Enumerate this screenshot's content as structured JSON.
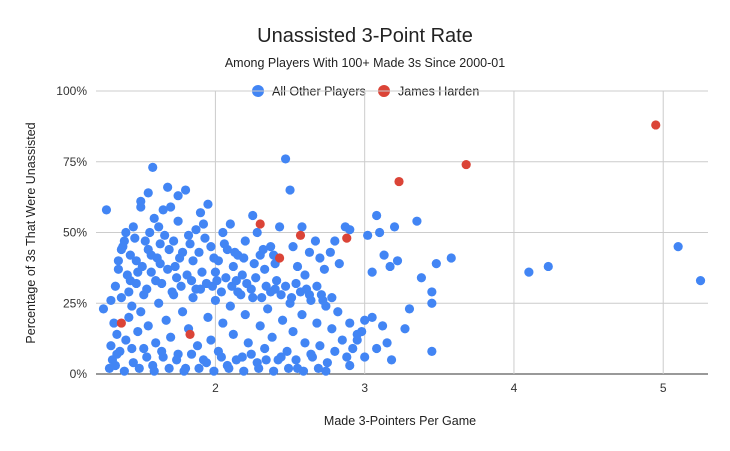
{
  "chart_data": {
    "type": "scatter",
    "title": "Unassisted 3-Point Rate",
    "subtitle": "Among Players With 100+ Made 3s Since 2000-01",
    "xlabel": "Made 3-Pointers Per Game",
    "ylabel": "Percentage of 3s That Were Unassisted",
    "xlim": [
      1.2,
      5.3
    ],
    "ylim": [
      0,
      100
    ],
    "x_ticks": [
      2,
      3,
      4,
      5
    ],
    "x_tick_labels": [
      "2",
      "3",
      "4",
      "5"
    ],
    "y_ticks": [
      0,
      25,
      50,
      75,
      100
    ],
    "y_tick_labels": [
      "0%",
      "25%",
      "50%",
      "75%",
      "100%"
    ],
    "grid": true,
    "legend_position": "top-center",
    "series": [
      {
        "name": "All Other Players",
        "color": "#4285f4",
        "points": [
          [
            1.25,
            23
          ],
          [
            1.27,
            58
          ],
          [
            1.3,
            26
          ],
          [
            1.31,
            5
          ],
          [
            1.33,
            3
          ],
          [
            1.34,
            14
          ],
          [
            1.35,
            37
          ],
          [
            1.37,
            44
          ],
          [
            1.38,
            45
          ],
          [
            1.4,
            50
          ],
          [
            1.42,
            29
          ],
          [
            1.43,
            33
          ],
          [
            1.45,
            52
          ],
          [
            1.47,
            40
          ],
          [
            1.48,
            36
          ],
          [
            1.5,
            59
          ],
          [
            1.5,
            61
          ],
          [
            1.52,
            28
          ],
          [
            1.55,
            44
          ],
          [
            1.55,
            64
          ],
          [
            1.57,
            42
          ],
          [
            1.58,
            73
          ],
          [
            1.6,
            33
          ],
          [
            1.62,
            52
          ],
          [
            1.63,
            46
          ],
          [
            1.65,
            58
          ],
          [
            1.66,
            49
          ],
          [
            1.68,
            66
          ],
          [
            1.7,
            59
          ],
          [
            1.72,
            47
          ],
          [
            1.73,
            38
          ],
          [
            1.75,
            63
          ],
          [
            1.75,
            54
          ],
          [
            1.78,
            43
          ],
          [
            1.8,
            65
          ],
          [
            1.82,
            49
          ],
          [
            1.85,
            40
          ],
          [
            1.87,
            51
          ],
          [
            1.9,
            57
          ],
          [
            1.92,
            53
          ],
          [
            1.95,
            60
          ],
          [
            1.97,
            45
          ],
          [
            2.0,
            36
          ],
          [
            2.02,
            40
          ],
          [
            2.05,
            50
          ],
          [
            2.08,
            44
          ],
          [
            2.1,
            53
          ],
          [
            2.12,
            38
          ],
          [
            2.15,
            42
          ],
          [
            2.18,
            35
          ],
          [
            2.2,
            47
          ],
          [
            2.25,
            56
          ],
          [
            2.28,
            50
          ],
          [
            2.3,
            42
          ],
          [
            2.33,
            37
          ],
          [
            2.37,
            45
          ],
          [
            2.4,
            39
          ],
          [
            2.43,
            52
          ],
          [
            2.47,
            76
          ],
          [
            2.5,
            65
          ],
          [
            2.52,
            45
          ],
          [
            2.55,
            38
          ],
          [
            2.58,
            52
          ],
          [
            2.6,
            35
          ],
          [
            2.63,
            43
          ],
          [
            2.67,
            47
          ],
          [
            2.7,
            41
          ],
          [
            2.73,
            37
          ],
          [
            2.77,
            43
          ],
          [
            2.8,
            47
          ],
          [
            2.83,
            39
          ],
          [
            2.87,
            52
          ],
          [
            2.9,
            51
          ],
          [
            3.0,
            19
          ],
          [
            3.02,
            49
          ],
          [
            3.05,
            36
          ],
          [
            3.08,
            56
          ],
          [
            3.1,
            50
          ],
          [
            3.13,
            42
          ],
          [
            3.17,
            38
          ],
          [
            3.2,
            52
          ],
          [
            3.22,
            40
          ],
          [
            3.27,
            16
          ],
          [
            3.3,
            23
          ],
          [
            3.35,
            54
          ],
          [
            3.38,
            34
          ],
          [
            3.45,
            29
          ],
          [
            3.48,
            39
          ],
          [
            3.58,
            41
          ],
          [
            3.45,
            25
          ],
          [
            3.45,
            8
          ],
          [
            3.15,
            11
          ],
          [
            3.05,
            20
          ],
          [
            2.95,
            12
          ],
          [
            2.98,
            15
          ],
          [
            3.08,
            9
          ],
          [
            3.12,
            17
          ],
          [
            3.18,
            5
          ],
          [
            2.9,
            3
          ],
          [
            3.0,
            6
          ],
          [
            4.1,
            36
          ],
          [
            4.23,
            38
          ],
          [
            5.1,
            45
          ],
          [
            5.25,
            33
          ],
          [
            1.3,
            10
          ],
          [
            1.32,
            18
          ],
          [
            1.36,
            8
          ],
          [
            1.4,
            12
          ],
          [
            1.42,
            20
          ],
          [
            1.45,
            4
          ],
          [
            1.48,
            15
          ],
          [
            1.5,
            22
          ],
          [
            1.52,
            9
          ],
          [
            1.55,
            17
          ],
          [
            1.58,
            3
          ],
          [
            1.6,
            11
          ],
          [
            1.62,
            25
          ],
          [
            1.65,
            6
          ],
          [
            1.67,
            19
          ],
          [
            1.7,
            13
          ],
          [
            1.72,
            28
          ],
          [
            1.75,
            7
          ],
          [
            1.78,
            22
          ],
          [
            1.8,
            2
          ],
          [
            1.82,
            16
          ],
          [
            1.85,
            27
          ],
          [
            1.88,
            10
          ],
          [
            1.9,
            30
          ],
          [
            1.92,
            5
          ],
          [
            1.95,
            20
          ],
          [
            1.97,
            12
          ],
          [
            2.0,
            26
          ],
          [
            2.02,
            8
          ],
          [
            2.05,
            18
          ],
          [
            2.08,
            3
          ],
          [
            2.1,
            24
          ],
          [
            2.12,
            14
          ],
          [
            2.15,
            29
          ],
          [
            2.18,
            6
          ],
          [
            2.2,
            21
          ],
          [
            2.22,
            11
          ],
          [
            2.25,
            27
          ],
          [
            2.28,
            4
          ],
          [
            2.3,
            17
          ],
          [
            2.33,
            9
          ],
          [
            2.35,
            23
          ],
          [
            2.38,
            13
          ],
          [
            2.4,
            30
          ],
          [
            2.42,
            5
          ],
          [
            2.45,
            19
          ],
          [
            2.48,
            8
          ],
          [
            2.5,
            25
          ],
          [
            2.52,
            15
          ],
          [
            2.55,
            2
          ],
          [
            2.58,
            21
          ],
          [
            2.6,
            11
          ],
          [
            2.63,
            28
          ],
          [
            2.65,
            6
          ],
          [
            2.68,
            18
          ],
          [
            2.7,
            10
          ],
          [
            2.72,
            26
          ],
          [
            2.75,
            4
          ],
          [
            2.78,
            16
          ],
          [
            2.8,
            8
          ],
          [
            2.82,
            22
          ],
          [
            2.85,
            12
          ],
          [
            2.88,
            6
          ],
          [
            2.9,
            18
          ],
          [
            2.92,
            9
          ],
          [
            2.95,
            14
          ],
          [
            1.33,
            31
          ],
          [
            1.37,
            27
          ],
          [
            1.41,
            35
          ],
          [
            1.44,
            24
          ],
          [
            1.47,
            32
          ],
          [
            1.51,
            38
          ],
          [
            1.54,
            30
          ],
          [
            1.57,
            36
          ],
          [
            1.61,
            41
          ],
          [
            1.64,
            32
          ],
          [
            1.68,
            37
          ],
          [
            1.71,
            29
          ],
          [
            1.74,
            34
          ],
          [
            1.77,
            31
          ],
          [
            1.81,
            35
          ],
          [
            1.84,
            33
          ],
          [
            1.87,
            30
          ],
          [
            1.91,
            36
          ],
          [
            1.94,
            32
          ],
          [
            1.98,
            31
          ],
          [
            2.01,
            33
          ],
          [
            2.04,
            29
          ],
          [
            2.07,
            34
          ],
          [
            2.11,
            31
          ],
          [
            2.14,
            33
          ],
          [
            2.17,
            28
          ],
          [
            2.21,
            32
          ],
          [
            2.24,
            30
          ],
          [
            2.27,
            34
          ],
          [
            2.31,
            27
          ],
          [
            2.34,
            31
          ],
          [
            2.37,
            29
          ],
          [
            2.41,
            33
          ],
          [
            2.44,
            28
          ],
          [
            2.47,
            31
          ],
          [
            2.51,
            27
          ],
          [
            2.54,
            32
          ],
          [
            2.57,
            29
          ],
          [
            2.61,
            30
          ],
          [
            2.64,
            26
          ],
          [
            2.68,
            31
          ],
          [
            2.71,
            28
          ],
          [
            2.74,
            24
          ],
          [
            2.78,
            27
          ],
          [
            1.35,
            40
          ],
          [
            1.39,
            47
          ],
          [
            1.43,
            42
          ],
          [
            1.46,
            48
          ],
          [
            1.53,
            47
          ],
          [
            1.56,
            50
          ],
          [
            1.59,
            55
          ],
          [
            1.63,
            39
          ],
          [
            1.69,
            44
          ],
          [
            1.76,
            41
          ],
          [
            1.83,
            46
          ],
          [
            1.89,
            43
          ],
          [
            1.93,
            48
          ],
          [
            1.99,
            41
          ],
          [
            2.06,
            46
          ],
          [
            2.13,
            43
          ],
          [
            2.19,
            41
          ],
          [
            2.26,
            39
          ],
          [
            2.32,
            44
          ],
          [
            2.39,
            42
          ],
          [
            1.29,
            2
          ],
          [
            1.34,
            7
          ],
          [
            1.39,
            1
          ],
          [
            1.44,
            9
          ],
          [
            1.49,
            2
          ],
          [
            1.54,
            6
          ],
          [
            1.59,
            1
          ],
          [
            1.64,
            8
          ],
          [
            1.69,
            2
          ],
          [
            1.74,
            5
          ],
          [
            1.79,
            1
          ],
          [
            1.84,
            7
          ],
          [
            1.89,
            2
          ],
          [
            1.94,
            4
          ],
          [
            1.99,
            1
          ],
          [
            2.04,
            6
          ],
          [
            2.09,
            2
          ],
          [
            2.14,
            5
          ],
          [
            2.19,
            1
          ],
          [
            2.24,
            7
          ],
          [
            2.29,
            2
          ],
          [
            2.34,
            5
          ],
          [
            2.39,
            1
          ],
          [
            2.44,
            6
          ],
          [
            2.49,
            2
          ],
          [
            2.54,
            5
          ],
          [
            2.59,
            1
          ],
          [
            2.64,
            7
          ],
          [
            2.69,
            2
          ],
          [
            2.74,
            1
          ]
        ]
      },
      {
        "name": "James Harden",
        "color": "#db4437",
        "points": [
          [
            1.37,
            18
          ],
          [
            1.83,
            14
          ],
          [
            2.3,
            53
          ],
          [
            2.43,
            41
          ],
          [
            2.57,
            49
          ],
          [
            2.88,
            48
          ],
          [
            3.23,
            68
          ],
          [
            3.68,
            74
          ],
          [
            4.95,
            88
          ]
        ]
      }
    ]
  }
}
